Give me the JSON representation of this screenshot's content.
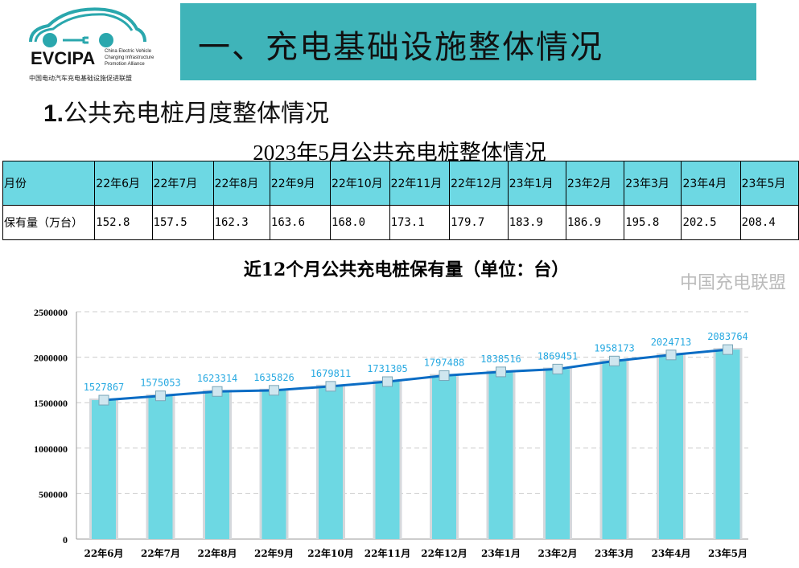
{
  "logo": {
    "name": "EVCIPA",
    "subtitle": "China Electric Vehicle Charging Infrastructure Promotion Alliance",
    "cn": "中国电动汽车充电基础设施促进联盟"
  },
  "header": {
    "title": "一、充电基础设施整体情况"
  },
  "section": {
    "num": "1.",
    "title": "公共充电桩月度整体情况"
  },
  "table": {
    "title": "2023年5月公共充电桩整体情况",
    "row_headers": [
      "月份",
      "保有量（万台）"
    ],
    "months": [
      "22年6月",
      "22年7月",
      "22年8月",
      "22年9月",
      "22年10月",
      "22年11月",
      "22年12月",
      "23年1月",
      "23年2月",
      "23年3月",
      "23年4月",
      "23年5月"
    ],
    "values": [
      "152.8",
      "157.5",
      "162.3",
      "163.6",
      "168.0",
      "173.1",
      "179.7",
      "183.9",
      "186.9",
      "195.8",
      "202.5",
      "208.4"
    ],
    "header_color": "#6dd8e3"
  },
  "chart_data": {
    "type": "bar",
    "title": "近12个月公共充电桩保有量（单位：台）",
    "categories": [
      "22年6月",
      "22年7月",
      "22年8月",
      "22年9月",
      "22年10月",
      "22年11月",
      "22年12月",
      "23年1月",
      "23年2月",
      "23年3月",
      "23年4月",
      "23年5月"
    ],
    "values": [
      1527867,
      1575053,
      1623314,
      1635826,
      1679811,
      1731305,
      1797488,
      1838516,
      1869451,
      1958173,
      2024713,
      2083764
    ],
    "overlay_line": true,
    "ylim": [
      0,
      2500000
    ],
    "yticks": [
      "0",
      "500000",
      "1000000",
      "1500000",
      "2000000",
      "2500000"
    ],
    "grid": true,
    "bar_color": "#6dd8e3",
    "line_color": "#0a6cc4",
    "label_color": "#27a9e1"
  },
  "watermark": "中国充电联盟"
}
